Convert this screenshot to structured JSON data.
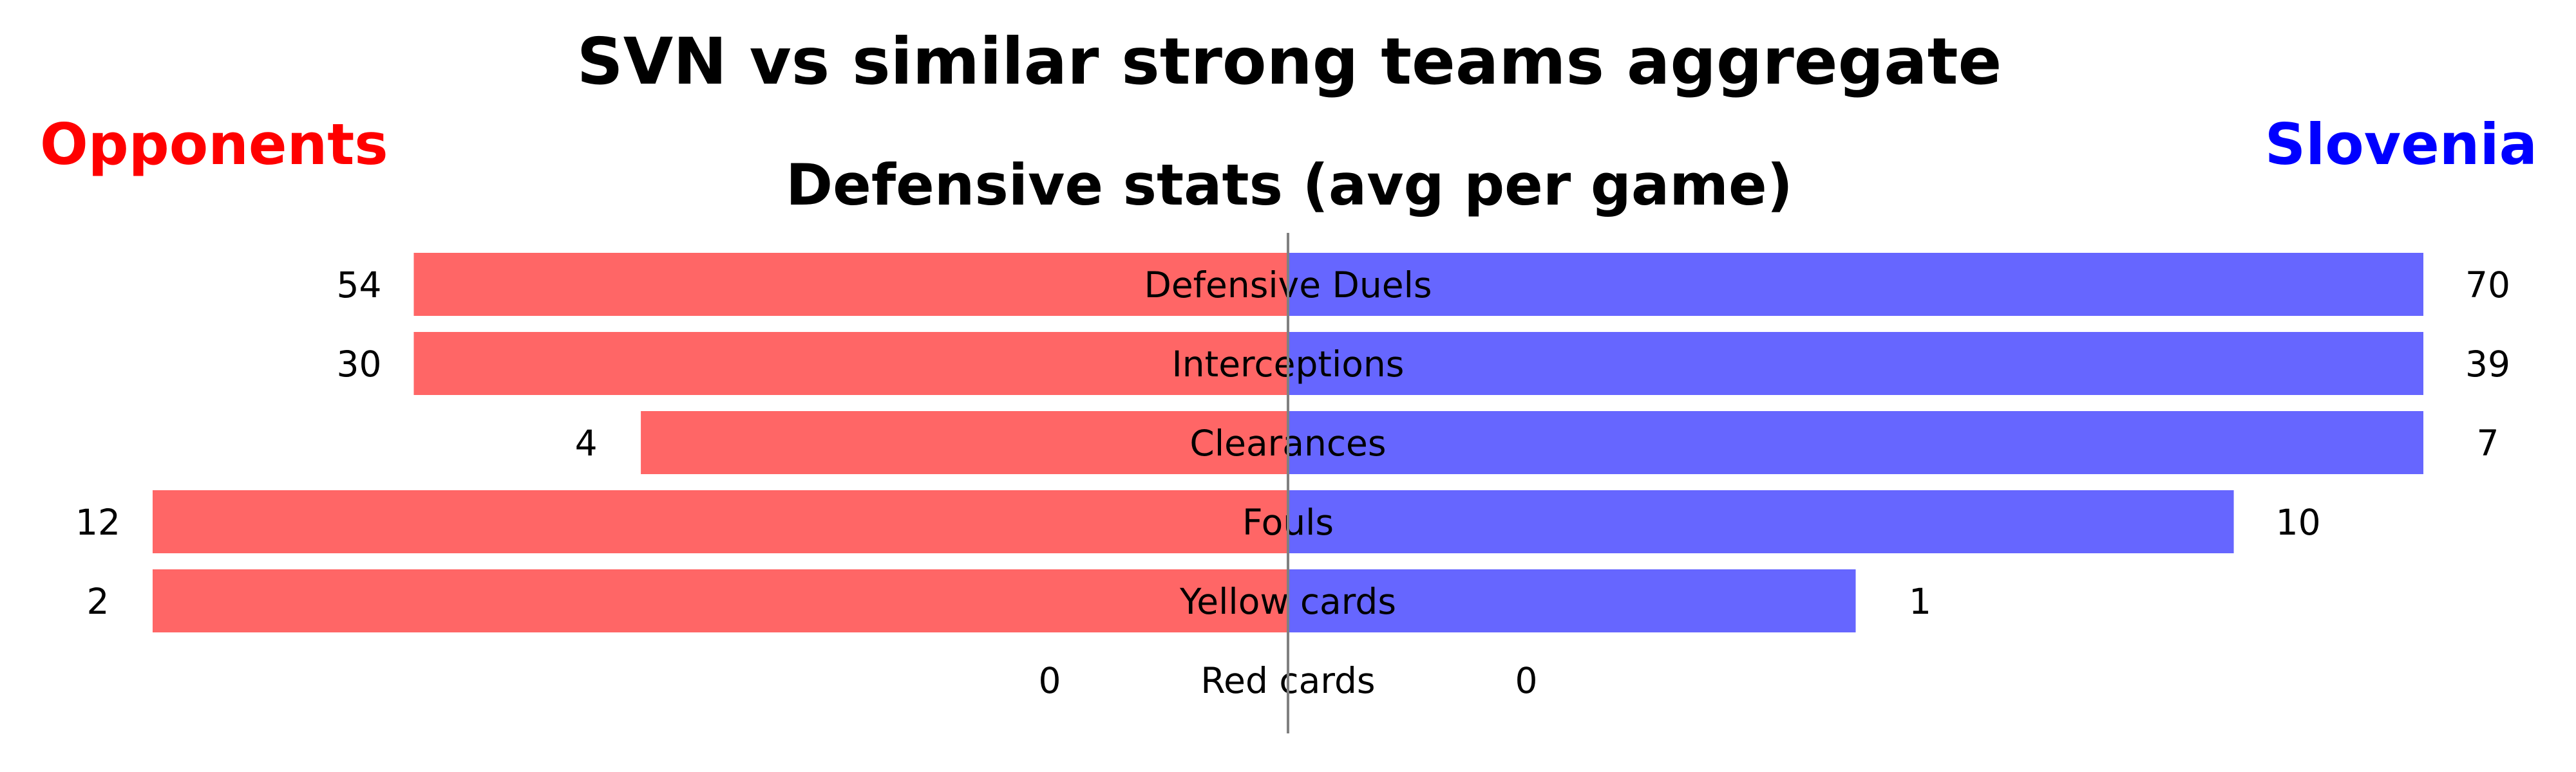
{
  "chart_data": {
    "type": "bar",
    "orientation": "horizontal-diverging",
    "title": "SVN vs similar strong teams aggregate",
    "subtitle": "Defensive stats (avg per game)",
    "left_label": "Opponents",
    "right_label": "Slovenia",
    "colors": {
      "left_title": "#ff0000",
      "right_title": "#0000ff",
      "left_bar": "#ff6666",
      "right_bar": "#6666ff",
      "center_line": "#808080",
      "text": "#000000"
    },
    "categories": [
      "Defensive Duels",
      "Interceptions",
      "Clearances",
      "Fouls",
      "Yellow cards",
      "Red cards"
    ],
    "series": [
      {
        "name": "Opponents",
        "side": "left",
        "values": [
          54,
          30,
          4,
          12,
          2,
          0
        ],
        "bar_share": [
          0.77,
          0.77,
          0.57,
          1.0,
          1.0,
          0
        ]
      },
      {
        "name": "Slovenia",
        "side": "right",
        "values": [
          70,
          39,
          7,
          10,
          1,
          0
        ],
        "bar_share": [
          1.0,
          1.0,
          1.0,
          0.833,
          0.5,
          0
        ]
      }
    ],
    "legend": "top-left / top-right labels",
    "grid": false
  }
}
